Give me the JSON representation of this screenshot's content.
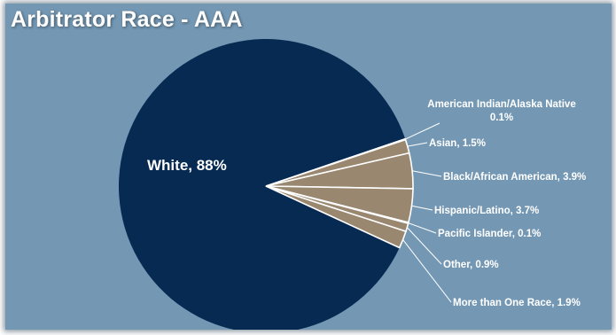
{
  "chart_data": {
    "type": "pie",
    "title": "Arbitrator Race - AAA",
    "slices": [
      {
        "label": "White",
        "value": 88,
        "color": "#062a51",
        "display": "White, 88%"
      },
      {
        "label": "American Indian/Alaska Native",
        "value": 0.1,
        "color": "#9a8770",
        "display": [
          "American Indian/Alaska Native",
          "0.1%"
        ]
      },
      {
        "label": "Asian",
        "value": 1.5,
        "color": "#9a8770",
        "display": "Asian, 1.5%"
      },
      {
        "label": "Black/African American",
        "value": 3.9,
        "color": "#9a8770",
        "display": "Black/African American, 3.9%"
      },
      {
        "label": "Hispanic/Latino",
        "value": 3.7,
        "color": "#9a8770",
        "display": "Hispanic/Latino, 3.7%"
      },
      {
        "label": "Pacific Islander",
        "value": 0.1,
        "color": "#9a8770",
        "display": "Pacific Islander, 0.1%"
      },
      {
        "label": "Other",
        "value": 0.9,
        "color": "#9a8770",
        "display": "Other, 0.9%"
      },
      {
        "label": "More than One Race",
        "value": 1.9,
        "color": "#9a8770",
        "display": "More than One Race, 1.9%"
      }
    ],
    "legend": "none"
  },
  "colors": {
    "background": "#7498b4",
    "slice_edge": "#ffffff",
    "leader_line": "#ffffff"
  }
}
